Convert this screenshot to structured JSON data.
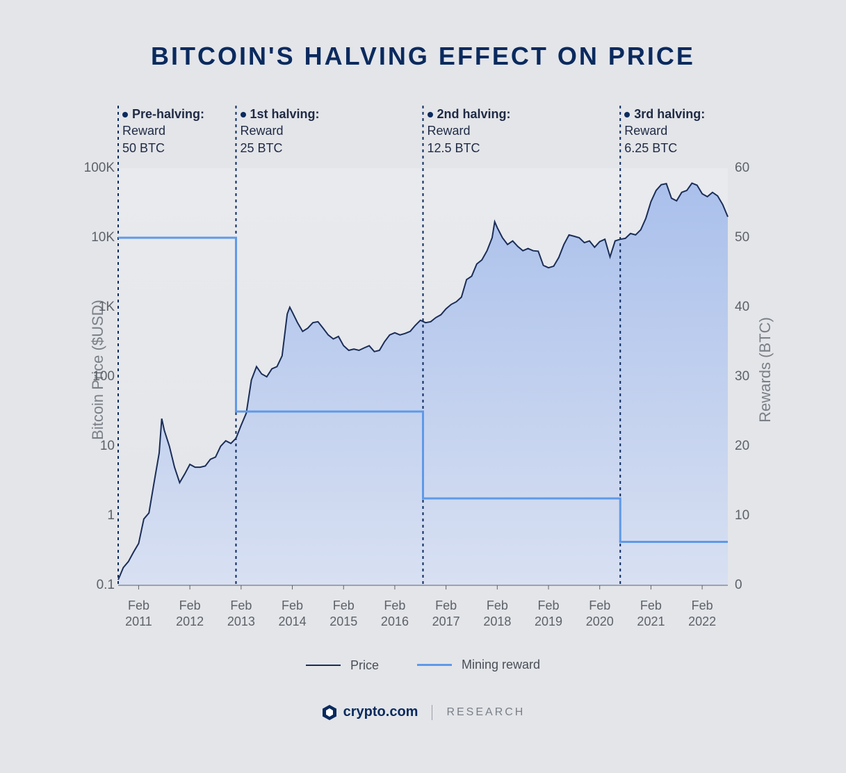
{
  "title": "BITCOIN'S HALVING EFFECT ON PRICE",
  "y1_label": "Bitcoin Price ($USD)",
  "y2_label": "Rewards (BTC)",
  "legend": {
    "price": "Price",
    "reward": "Mining reward"
  },
  "footer": {
    "brand": "crypto.com",
    "tag": "RESEARCH"
  },
  "chart": {
    "type": "line+step-dual-axis",
    "background_color": "#e3e5e9",
    "area_fill_top": "#aac0eb",
    "area_fill_bottom": "#d8e0f2",
    "price_line_color": "#1a2d57",
    "price_line_width": 2,
    "reward_line_color": "#5f99e8",
    "reward_line_width": 3,
    "dash_color": "#0a2a5e",
    "title_color": "#0a2a5e",
    "tick_color": "#5d6269",
    "axis_label_color": "#7a7f87",
    "title_fontsize": 36,
    "tick_fontsize": 19,
    "axis_label_fontsize": 22,
    "annotation_fontsize": 18,
    "x_axis": {
      "min_year": 2010.6,
      "max_year": 2022.5,
      "tick_years": [
        2011,
        2012,
        2013,
        2014,
        2015,
        2016,
        2017,
        2018,
        2019,
        2020,
        2021,
        2022
      ],
      "tick_labels": [
        "Feb\n2011",
        "Feb\n2012",
        "Feb\n2013",
        "Feb\n2014",
        "Feb\n2015",
        "Feb\n2016",
        "Feb\n2017",
        "Feb\n2018",
        "Feb\n2019",
        "Feb\n2020",
        "Feb\n2021",
        "Feb\n2022"
      ]
    },
    "y1_axis": {
      "scale": "log",
      "min": 0.1,
      "max": 100000,
      "ticks": [
        0.1,
        1,
        10,
        100,
        1000,
        10000,
        100000
      ],
      "tick_labels": [
        "0.1",
        "1",
        "10",
        "100",
        "1K",
        "10K",
        "100K"
      ]
    },
    "y2_axis": {
      "scale": "linear",
      "min": 0,
      "max": 60,
      "ticks": [
        0,
        10,
        20,
        30,
        40,
        50,
        60
      ],
      "tick_labels": [
        "0",
        "10",
        "20",
        "30",
        "40",
        "50",
        "60"
      ]
    },
    "halvings": [
      {
        "year": 2010.6,
        "title": "Pre-halving:",
        "sub1": "Reward",
        "sub2": "50 BTC",
        "dot": true
      },
      {
        "year": 2012.9,
        "title": "1st halving:",
        "sub1": "Reward",
        "sub2": "25 BTC",
        "dot": true
      },
      {
        "year": 2016.55,
        "title": "2nd halving:",
        "sub1": "Reward",
        "sub2": "12.5 BTC",
        "dot": true
      },
      {
        "year": 2020.4,
        "title": "3rd halving:",
        "sub1": "Reward",
        "sub2": "6.25 BTC",
        "dot": true
      }
    ],
    "reward_series": [
      {
        "year": 2010.6,
        "btc": 50
      },
      {
        "year": 2012.9,
        "btc": 50
      },
      {
        "year": 2012.9,
        "btc": 25
      },
      {
        "year": 2016.55,
        "btc": 25
      },
      {
        "year": 2016.55,
        "btc": 12.5
      },
      {
        "year": 2020.4,
        "btc": 12.5
      },
      {
        "year": 2020.4,
        "btc": 6.25
      },
      {
        "year": 2022.5,
        "btc": 6.25
      }
    ],
    "price_series": [
      {
        "year": 2010.6,
        "usd": 0.12
      },
      {
        "year": 2010.7,
        "usd": 0.18
      },
      {
        "year": 2010.8,
        "usd": 0.22
      },
      {
        "year": 2010.9,
        "usd": 0.3
      },
      {
        "year": 2011.0,
        "usd": 0.4
      },
      {
        "year": 2011.1,
        "usd": 0.9
      },
      {
        "year": 2011.2,
        "usd": 1.1
      },
      {
        "year": 2011.3,
        "usd": 3.0
      },
      {
        "year": 2011.4,
        "usd": 8.0
      },
      {
        "year": 2011.45,
        "usd": 25.0
      },
      {
        "year": 2011.5,
        "usd": 17.0
      },
      {
        "year": 2011.6,
        "usd": 10.0
      },
      {
        "year": 2011.7,
        "usd": 5.0
      },
      {
        "year": 2011.8,
        "usd": 3.0
      },
      {
        "year": 2011.9,
        "usd": 4.0
      },
      {
        "year": 2012.0,
        "usd": 5.5
      },
      {
        "year": 2012.1,
        "usd": 5.0
      },
      {
        "year": 2012.2,
        "usd": 5.0
      },
      {
        "year": 2012.3,
        "usd": 5.2
      },
      {
        "year": 2012.4,
        "usd": 6.5
      },
      {
        "year": 2012.5,
        "usd": 7.0
      },
      {
        "year": 2012.6,
        "usd": 10.0
      },
      {
        "year": 2012.7,
        "usd": 12.0
      },
      {
        "year": 2012.8,
        "usd": 11.0
      },
      {
        "year": 2012.9,
        "usd": 13.0
      },
      {
        "year": 2013.0,
        "usd": 20.0
      },
      {
        "year": 2013.1,
        "usd": 30.0
      },
      {
        "year": 2013.2,
        "usd": 90.0
      },
      {
        "year": 2013.3,
        "usd": 140.0
      },
      {
        "year": 2013.4,
        "usd": 110.0
      },
      {
        "year": 2013.5,
        "usd": 100.0
      },
      {
        "year": 2013.6,
        "usd": 130.0
      },
      {
        "year": 2013.7,
        "usd": 140.0
      },
      {
        "year": 2013.8,
        "usd": 200.0
      },
      {
        "year": 2013.9,
        "usd": 800.0
      },
      {
        "year": 2013.95,
        "usd": 1000.0
      },
      {
        "year": 2014.0,
        "usd": 850.0
      },
      {
        "year": 2014.1,
        "usd": 600.0
      },
      {
        "year": 2014.2,
        "usd": 450.0
      },
      {
        "year": 2014.3,
        "usd": 500.0
      },
      {
        "year": 2014.4,
        "usd": 600.0
      },
      {
        "year": 2014.5,
        "usd": 620.0
      },
      {
        "year": 2014.6,
        "usd": 500.0
      },
      {
        "year": 2014.7,
        "usd": 400.0
      },
      {
        "year": 2014.8,
        "usd": 350.0
      },
      {
        "year": 2014.9,
        "usd": 380.0
      },
      {
        "year": 2015.0,
        "usd": 280.0
      },
      {
        "year": 2015.1,
        "usd": 240.0
      },
      {
        "year": 2015.2,
        "usd": 250.0
      },
      {
        "year": 2015.3,
        "usd": 240.0
      },
      {
        "year": 2015.4,
        "usd": 260.0
      },
      {
        "year": 2015.5,
        "usd": 280.0
      },
      {
        "year": 2015.6,
        "usd": 230.0
      },
      {
        "year": 2015.7,
        "usd": 240.0
      },
      {
        "year": 2015.8,
        "usd": 320.0
      },
      {
        "year": 2015.9,
        "usd": 400.0
      },
      {
        "year": 2016.0,
        "usd": 430.0
      },
      {
        "year": 2016.1,
        "usd": 400.0
      },
      {
        "year": 2016.2,
        "usd": 420.0
      },
      {
        "year": 2016.3,
        "usd": 450.0
      },
      {
        "year": 2016.4,
        "usd": 550.0
      },
      {
        "year": 2016.5,
        "usd": 650.0
      },
      {
        "year": 2016.6,
        "usd": 600.0
      },
      {
        "year": 2016.7,
        "usd": 620.0
      },
      {
        "year": 2016.8,
        "usd": 710.0
      },
      {
        "year": 2016.9,
        "usd": 780.0
      },
      {
        "year": 2017.0,
        "usd": 950.0
      },
      {
        "year": 2017.1,
        "usd": 1100.0
      },
      {
        "year": 2017.2,
        "usd": 1200.0
      },
      {
        "year": 2017.3,
        "usd": 1400.0
      },
      {
        "year": 2017.4,
        "usd": 2500.0
      },
      {
        "year": 2017.5,
        "usd": 2800.0
      },
      {
        "year": 2017.6,
        "usd": 4200.0
      },
      {
        "year": 2017.7,
        "usd": 4800.0
      },
      {
        "year": 2017.8,
        "usd": 6500.0
      },
      {
        "year": 2017.9,
        "usd": 10000.0
      },
      {
        "year": 2017.95,
        "usd": 17000.0
      },
      {
        "year": 2018.0,
        "usd": 14000.0
      },
      {
        "year": 2018.1,
        "usd": 10000.0
      },
      {
        "year": 2018.2,
        "usd": 8000.0
      },
      {
        "year": 2018.3,
        "usd": 9000.0
      },
      {
        "year": 2018.4,
        "usd": 7500.0
      },
      {
        "year": 2018.5,
        "usd": 6500.0
      },
      {
        "year": 2018.6,
        "usd": 7000.0
      },
      {
        "year": 2018.7,
        "usd": 6500.0
      },
      {
        "year": 2018.8,
        "usd": 6400.0
      },
      {
        "year": 2018.9,
        "usd": 4000.0
      },
      {
        "year": 2019.0,
        "usd": 3700.0
      },
      {
        "year": 2019.1,
        "usd": 3900.0
      },
      {
        "year": 2019.2,
        "usd": 5200.0
      },
      {
        "year": 2019.3,
        "usd": 8000.0
      },
      {
        "year": 2019.4,
        "usd": 11000.0
      },
      {
        "year": 2019.5,
        "usd": 10500.0
      },
      {
        "year": 2019.6,
        "usd": 10000.0
      },
      {
        "year": 2019.7,
        "usd": 8500.0
      },
      {
        "year": 2019.8,
        "usd": 9000.0
      },
      {
        "year": 2019.9,
        "usd": 7300.0
      },
      {
        "year": 2020.0,
        "usd": 8800.0
      },
      {
        "year": 2020.1,
        "usd": 9500.0
      },
      {
        "year": 2020.2,
        "usd": 5300.0
      },
      {
        "year": 2020.3,
        "usd": 9000.0
      },
      {
        "year": 2020.4,
        "usd": 9500.0
      },
      {
        "year": 2020.5,
        "usd": 9800.0
      },
      {
        "year": 2020.6,
        "usd": 11500.0
      },
      {
        "year": 2020.7,
        "usd": 11000.0
      },
      {
        "year": 2020.8,
        "usd": 13000.0
      },
      {
        "year": 2020.9,
        "usd": 19000.0
      },
      {
        "year": 2021.0,
        "usd": 33000.0
      },
      {
        "year": 2021.1,
        "usd": 48000.0
      },
      {
        "year": 2021.2,
        "usd": 58000.0
      },
      {
        "year": 2021.3,
        "usd": 60000.0
      },
      {
        "year": 2021.4,
        "usd": 37000.0
      },
      {
        "year": 2021.5,
        "usd": 34000.0
      },
      {
        "year": 2021.6,
        "usd": 45000.0
      },
      {
        "year": 2021.7,
        "usd": 48000.0
      },
      {
        "year": 2021.8,
        "usd": 61000.0
      },
      {
        "year": 2021.9,
        "usd": 57000.0
      },
      {
        "year": 2022.0,
        "usd": 43000.0
      },
      {
        "year": 2022.1,
        "usd": 39000.0
      },
      {
        "year": 2022.2,
        "usd": 45000.0
      },
      {
        "year": 2022.3,
        "usd": 40000.0
      },
      {
        "year": 2022.4,
        "usd": 30000.0
      },
      {
        "year": 2022.5,
        "usd": 20000.0
      }
    ]
  }
}
